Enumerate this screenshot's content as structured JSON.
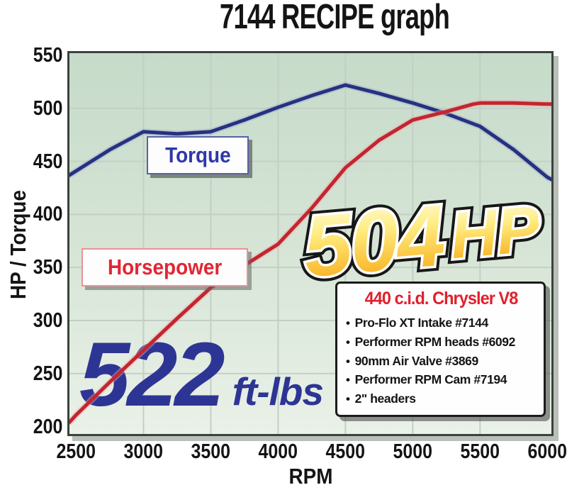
{
  "page": {
    "title": "7144 RECIPE graph"
  },
  "chart_data": {
    "type": "line",
    "title": "7144 RECIPE graph",
    "xlabel": "RPM",
    "ylabel": "HP / Torque",
    "xlim": [
      2450,
      6030
    ],
    "ylim": [
      193,
      552
    ],
    "xticks": [
      2500,
      3000,
      3500,
      4000,
      4500,
      5000,
      5500,
      6000
    ],
    "yticks": [
      200,
      250,
      300,
      350,
      400,
      450,
      500,
      550
    ],
    "grid": true,
    "legend_position": "on-chart-boxes",
    "series": [
      {
        "name": "Torque",
        "color": "#26327f",
        "halo": "#9fabcf",
        "x": [
          2450,
          2500,
          2750,
          3000,
          3250,
          3500,
          3750,
          4000,
          4250,
          4500,
          4750,
          5000,
          5250,
          5500,
          5750,
          6000,
          6030
        ],
        "values": [
          437,
          441,
          461,
          478,
          476,
          478,
          489,
          501,
          512,
          522,
          514,
          505,
          495,
          483,
          461,
          435,
          433
        ]
      },
      {
        "name": "Horsepower",
        "color": "#c22630",
        "halo": "#ecaaad",
        "x": [
          2450,
          2500,
          2750,
          3000,
          3250,
          3500,
          3750,
          4000,
          4250,
          4500,
          4750,
          5000,
          5250,
          5450,
          5500,
          5750,
          6000,
          6030
        ],
        "values": [
          204,
          211,
          242,
          272,
          302,
          331,
          352,
          372,
          406,
          444,
          470,
          489,
          497,
          504,
          505,
          505,
          504,
          504
        ]
      }
    ],
    "callouts": {
      "hp": {
        "value": "504",
        "unit": "HP"
      },
      "torque": {
        "value": "522",
        "unit": "ft-lbs"
      }
    },
    "series_labels": {
      "torque": "Torque",
      "horsepower": "Horsepower"
    }
  },
  "info_box": {
    "title": "440 c.i.d. Chrysler V8",
    "bullets": [
      "Pro-Flo XT Intake #7144",
      "Performer RPM heads #6092",
      "90mm Air Valve #3869",
      "Performer RPM Cam #7194",
      "2\" headers"
    ]
  },
  "colors": {
    "plot_bg_top": "#c6dbc9",
    "plot_bg_bottom": "#eaf1e8",
    "gridline": "#c3cfc5",
    "plot_border": "#39433c",
    "torque_line": "#26327f",
    "horsepower_line": "#c22630",
    "torque_text": "#2e38a8",
    "horsepower_text": "#e32533",
    "callout_torque_text": "#2d3594",
    "callout_hp_gradient_top": "#fffde2",
    "callout_hp_gradient_bottom": "#f6a70e",
    "info_title_text": "#e0202e"
  }
}
